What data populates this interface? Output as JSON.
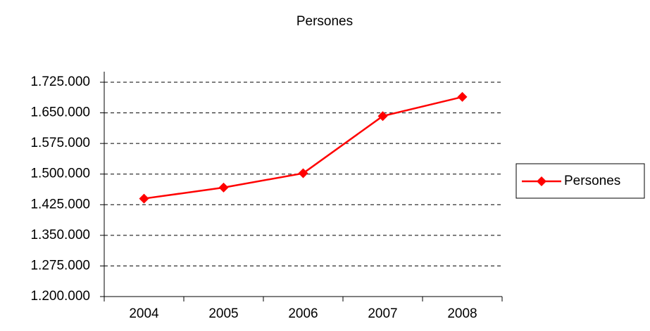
{
  "chart_data": {
    "type": "line",
    "title": "Persones",
    "categories": [
      "2004",
      "2005",
      "2006",
      "2007",
      "2008"
    ],
    "series": [
      {
        "name": "Persones",
        "color": "#ff0000",
        "values": [
          1440000,
          1467000,
          1502000,
          1642000,
          1689000
        ]
      }
    ],
    "ylim": [
      1200000,
      1725000
    ],
    "yticks": [
      {
        "value": 1200000,
        "label": "1.200.000"
      },
      {
        "value": 1275000,
        "label": "1.275.000"
      },
      {
        "value": 1350000,
        "label": "1.350.000"
      },
      {
        "value": 1425000,
        "label": "1.425.000"
      },
      {
        "value": 1500000,
        "label": "1.500.000"
      },
      {
        "value": 1575000,
        "label": "1.575.000"
      },
      {
        "value": 1650000,
        "label": "1.650.000"
      },
      {
        "value": 1725000,
        "label": "1.725.000"
      }
    ],
    "grid": true,
    "legend": "right"
  }
}
